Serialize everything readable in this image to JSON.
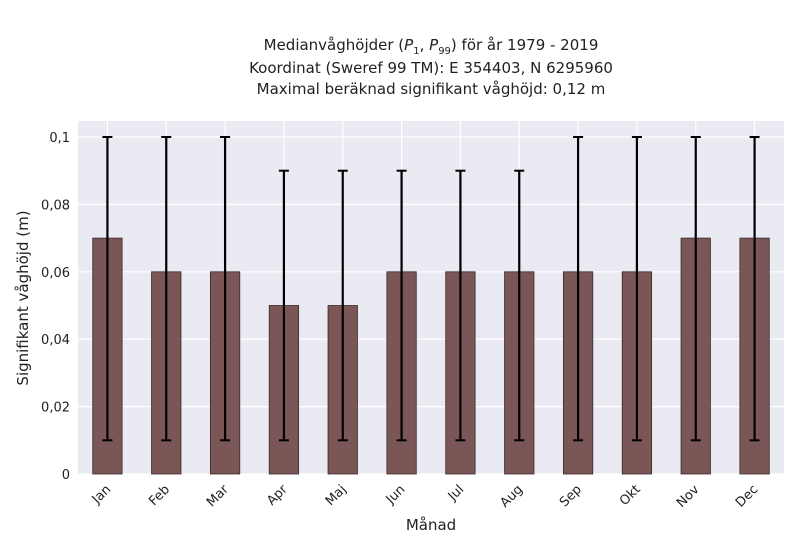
{
  "chart_data": {
    "type": "bar",
    "title_lines": {
      "prefix": "Medianvåghöjder (",
      "p_low": "P",
      "p_low_sub": "1",
      "p_sep": ", ",
      "p_high": "P",
      "p_high_sub": "99",
      "suffix": ") för år 1979 - 2019",
      "line2": "Koordinat (Sweref 99 TM): E 354403, N 6295960",
      "line3": "Maximal beräknad signifikant våghöjd: 0,12 m"
    },
    "xlabel": "Månad",
    "ylabel": "Signifikant våghöjd (m)",
    "categories": [
      "Jan",
      "Feb",
      "Mar",
      "Apr",
      "Maj",
      "Jun",
      "Jul",
      "Aug",
      "Sep",
      "Okt",
      "Nov",
      "Dec"
    ],
    "values": [
      0.07,
      0.06,
      0.06,
      0.05,
      0.05,
      0.06,
      0.06,
      0.06,
      0.06,
      0.06,
      0.07,
      0.07
    ],
    "p1": [
      0.01,
      0.01,
      0.01,
      0.01,
      0.01,
      0.01,
      0.01,
      0.01,
      0.01,
      0.01,
      0.01,
      0.01
    ],
    "p99": [
      0.1,
      0.1,
      0.1,
      0.09,
      0.09,
      0.09,
      0.09,
      0.09,
      0.1,
      0.1,
      0.1,
      0.1
    ],
    "ylim": [
      0,
      0.1
    ],
    "yticks": [
      0,
      0.02,
      0.04,
      0.06,
      0.08,
      0.1
    ],
    "ytick_labels": [
      "0",
      "0,02",
      "0,04",
      "0,06",
      "0,08",
      "0,1"
    ],
    "grid": true,
    "colors": {
      "bar": "#7b5656",
      "bar_edge": "#3b2a2a",
      "plot_bg": "#eaeaf2",
      "grid": "#ffffff",
      "errorbar": "#000000"
    }
  }
}
